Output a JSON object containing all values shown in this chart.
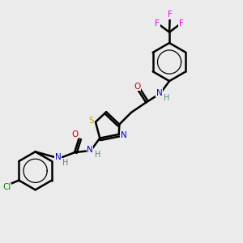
{
  "background_color": "#ebebeb",
  "atom_colors": {
    "C": "#000000",
    "N": "#0000cc",
    "O": "#cc0000",
    "S": "#ccaa00",
    "F": "#ee00ee",
    "Cl": "#008800",
    "H": "#558888"
  },
  "bond_color": "#000000",
  "bond_width": 1.8
}
